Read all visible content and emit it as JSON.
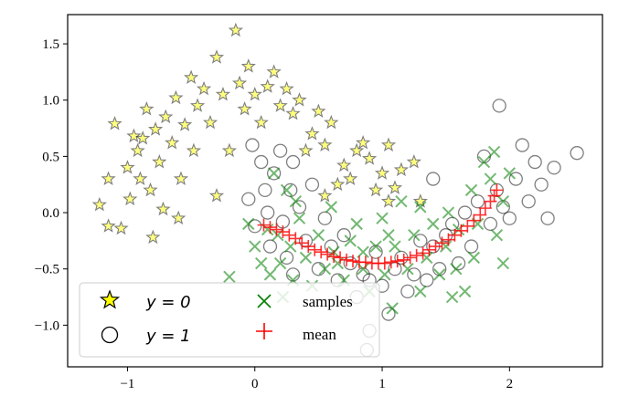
{
  "chart_data": {
    "type": "scatter",
    "title": "",
    "xlabel": "",
    "ylabel": "",
    "xlim": [
      -1.47,
      2.73
    ],
    "ylim": [
      -1.37,
      1.76
    ],
    "xticks": [
      -1,
      0,
      1,
      2
    ],
    "xtick_labels": [
      "−1",
      "0",
      "1",
      "2"
    ],
    "yticks": [
      1.5,
      1.0,
      0.5,
      0.0,
      -0.5,
      -1.0
    ],
    "ytick_labels": [
      "1.5",
      "1.0",
      "0.5",
      "0.0",
      "−0.5",
      "−1.0"
    ],
    "grid": false,
    "legend_position": "lower-left",
    "legend": [
      {
        "label": "y = 0",
        "marker": "star"
      },
      {
        "label": "y = 1",
        "marker": "circle"
      },
      {
        "label": "samples",
        "marker": "x"
      },
      {
        "label": "mean",
        "marker": "plus"
      }
    ],
    "colors": {
      "star_fill": "#ffff00",
      "points_edge": "#000000",
      "samples": "#008000",
      "mean": "#ff0000"
    },
    "series": [
      {
        "name": "y = 0",
        "points": [
          [
            -1.22,
            0.07
          ],
          [
            -1.15,
            -0.12
          ],
          [
            -1.1,
            0.79
          ],
          [
            -1.05,
            -0.14
          ],
          [
            -1.0,
            0.4
          ],
          [
            -0.98,
            0.12
          ],
          [
            -0.95,
            0.68
          ],
          [
            -0.92,
            0.55
          ],
          [
            -0.9,
            0.3
          ],
          [
            -0.88,
            0.66
          ],
          [
            -0.85,
            0.92
          ],
          [
            -0.82,
            0.2
          ],
          [
            -0.8,
            -0.22
          ],
          [
            -0.78,
            0.74
          ],
          [
            -0.75,
            0.45
          ],
          [
            -0.72,
            0.03
          ],
          [
            -0.7,
            0.85
          ],
          [
            -0.65,
            0.62
          ],
          [
            -0.62,
            1.02
          ],
          [
            -0.58,
            0.3
          ],
          [
            -0.55,
            0.78
          ],
          [
            -0.5,
            1.2
          ],
          [
            -0.48,
            0.55
          ],
          [
            -0.45,
            0.95
          ],
          [
            -0.4,
            1.1
          ],
          [
            -0.35,
            0.8
          ],
          [
            -0.3,
            1.38
          ],
          [
            -0.25,
            1.05
          ],
          [
            -0.2,
            0.55
          ],
          [
            -0.15,
            1.62
          ],
          [
            -0.12,
            1.15
          ],
          [
            -0.08,
            0.92
          ],
          [
            -0.05,
            1.3
          ],
          [
            0.0,
            1.05
          ],
          [
            0.05,
            0.8
          ],
          [
            0.1,
            1.12
          ],
          [
            0.15,
            1.25
          ],
          [
            0.2,
            0.95
          ],
          [
            0.25,
            1.1
          ],
          [
            0.3,
            0.88
          ],
          [
            0.35,
            1.0
          ],
          [
            0.4,
            0.55
          ],
          [
            0.45,
            0.7
          ],
          [
            0.5,
            0.9
          ],
          [
            0.55,
            0.6
          ],
          [
            0.6,
            0.8
          ],
          [
            0.65,
            0.25
          ],
          [
            0.7,
            0.42
          ],
          [
            0.75,
            0.3
          ],
          [
            0.8,
            0.55
          ],
          [
            0.85,
            0.62
          ],
          [
            0.9,
            0.48
          ],
          [
            0.95,
            0.2
          ],
          [
            1.0,
            0.35
          ],
          [
            1.05,
            0.6
          ],
          [
            1.1,
            0.22
          ],
          [
            1.15,
            0.38
          ],
          [
            1.25,
            0.45
          ],
          [
            1.3,
            0.1
          ],
          [
            -1.15,
            0.3
          ],
          [
            -0.6,
            -0.05
          ],
          [
            -0.3,
            0.15
          ],
          [
            0.55,
            0.15
          ],
          [
            1.05,
            0.1
          ]
        ]
      },
      {
        "name": "y = 1",
        "points": [
          [
            -0.05,
            0.12
          ],
          [
            0.0,
            -0.12
          ],
          [
            0.05,
            0.45
          ],
          [
            0.08,
            0.2
          ],
          [
            0.1,
            0.0
          ],
          [
            0.12,
            -0.3
          ],
          [
            0.15,
            0.35
          ],
          [
            0.2,
            0.55
          ],
          [
            0.22,
            -0.08
          ],
          [
            0.25,
            -0.4
          ],
          [
            0.28,
            0.2
          ],
          [
            0.3,
            0.45
          ],
          [
            0.35,
            0.05
          ],
          [
            0.4,
            -0.25
          ],
          [
            0.45,
            0.25
          ],
          [
            0.5,
            -0.5
          ],
          [
            0.55,
            -0.05
          ],
          [
            0.6,
            -0.3
          ],
          [
            0.65,
            -0.6
          ],
          [
            0.7,
            -0.2
          ],
          [
            0.75,
            -0.45
          ],
          [
            0.8,
            -0.75
          ],
          [
            0.85,
            -0.55
          ],
          [
            0.88,
            -1.22
          ],
          [
            0.9,
            -1.05
          ],
          [
            0.95,
            -0.35
          ],
          [
            1.0,
            -0.65
          ],
          [
            1.05,
            -0.9
          ],
          [
            1.1,
            -0.5
          ],
          [
            1.15,
            -0.4
          ],
          [
            1.2,
            -0.7
          ],
          [
            1.25,
            -0.55
          ],
          [
            1.3,
            -0.25
          ],
          [
            1.35,
            -0.6
          ],
          [
            1.4,
            -0.3
          ],
          [
            1.45,
            -0.5
          ],
          [
            1.5,
            -0.2
          ],
          [
            1.55,
            -0.1
          ],
          [
            1.6,
            -0.45
          ],
          [
            1.65,
            0.0
          ],
          [
            1.7,
            -0.3
          ],
          [
            1.75,
            0.1
          ],
          [
            1.8,
            0.5
          ],
          [
            1.85,
            -0.1
          ],
          [
            1.9,
            0.2
          ],
          [
            1.92,
            0.95
          ],
          [
            1.95,
            0.05
          ],
          [
            2.0,
            -0.05
          ],
          [
            2.05,
            0.3
          ],
          [
            2.1,
            0.6
          ],
          [
            2.15,
            0.1
          ],
          [
            2.2,
            0.45
          ],
          [
            2.25,
            0.25
          ],
          [
            2.3,
            -0.05
          ],
          [
            2.35,
            0.4
          ],
          [
            2.53,
            0.53
          ],
          [
            1.4,
            0.3
          ],
          [
            0.9,
            -0.6
          ],
          [
            -0.02,
            0.6
          ],
          [
            0.3,
            -0.55
          ]
        ]
      },
      {
        "name": "samples",
        "points": [
          [
            -0.2,
            -0.57
          ],
          [
            -0.05,
            -0.1
          ],
          [
            0.0,
            -0.3
          ],
          [
            0.05,
            -0.45
          ],
          [
            0.1,
            -0.15
          ],
          [
            0.12,
            -0.55
          ],
          [
            0.15,
            0.35
          ],
          [
            0.18,
            -0.2
          ],
          [
            0.2,
            -0.45
          ],
          [
            0.25,
            0.2
          ],
          [
            0.28,
            -0.3
          ],
          [
            0.3,
            -0.6
          ],
          [
            0.35,
            -0.05
          ],
          [
            0.4,
            -0.4
          ],
          [
            0.45,
            -0.65
          ],
          [
            0.5,
            -0.2
          ],
          [
            0.55,
            -0.5
          ],
          [
            0.6,
            0.05
          ],
          [
            0.62,
            -0.35
          ],
          [
            0.7,
            -0.6
          ],
          [
            0.75,
            -0.25
          ],
          [
            0.8,
            -0.1
          ],
          [
            0.85,
            -0.5
          ],
          [
            0.9,
            -0.7
          ],
          [
            0.95,
            -0.3
          ],
          [
            1.0,
            -0.05
          ],
          [
            1.02,
            -0.55
          ],
          [
            1.08,
            -0.85
          ],
          [
            1.1,
            -0.3
          ],
          [
            1.15,
            0.1
          ],
          [
            1.2,
            -0.5
          ],
          [
            1.25,
            -0.2
          ],
          [
            1.3,
            -0.7
          ],
          [
            1.35,
            -0.4
          ],
          [
            1.4,
            -0.1
          ],
          [
            1.45,
            -0.55
          ],
          [
            1.5,
            -0.3
          ],
          [
            1.52,
            0.0
          ],
          [
            1.58,
            -0.5
          ],
          [
            1.6,
            -0.15
          ],
          [
            1.65,
            -0.7
          ],
          [
            1.7,
            0.2
          ],
          [
            1.72,
            -0.4
          ],
          [
            1.75,
            -0.1
          ],
          [
            1.8,
            0.45
          ],
          [
            1.85,
            0.3
          ],
          [
            1.88,
            0.54
          ],
          [
            1.9,
            -0.2
          ],
          [
            1.95,
            0.1
          ],
          [
            2.0,
            0.35
          ],
          [
            1.55,
            -0.75
          ],
          [
            1.05,
            -0.2
          ],
          [
            0.65,
            -0.45
          ],
          [
            0.32,
            0.1
          ],
          [
            0.22,
            -0.75
          ],
          [
            1.95,
            -0.45
          ],
          [
            1.3,
            0.05
          ],
          [
            0.85,
            -0.35
          ]
        ]
      },
      {
        "name": "mean",
        "points": [
          [
            0.07,
            -0.11
          ],
          [
            0.12,
            -0.13
          ],
          [
            0.17,
            -0.15
          ],
          [
            0.22,
            -0.17
          ],
          [
            0.27,
            -0.2
          ],
          [
            0.32,
            -0.23
          ],
          [
            0.37,
            -0.27
          ],
          [
            0.42,
            -0.3
          ],
          [
            0.47,
            -0.33
          ],
          [
            0.52,
            -0.35
          ],
          [
            0.57,
            -0.37
          ],
          [
            0.62,
            -0.39
          ],
          [
            0.67,
            -0.4
          ],
          [
            0.72,
            -0.42
          ],
          [
            0.77,
            -0.43
          ],
          [
            0.82,
            -0.44
          ],
          [
            0.87,
            -0.44
          ],
          [
            0.92,
            -0.45
          ],
          [
            0.97,
            -0.45
          ],
          [
            1.02,
            -0.45
          ],
          [
            1.07,
            -0.44
          ],
          [
            1.12,
            -0.43
          ],
          [
            1.17,
            -0.42
          ],
          [
            1.22,
            -0.4
          ],
          [
            1.27,
            -0.38
          ],
          [
            1.32,
            -0.36
          ],
          [
            1.37,
            -0.33
          ],
          [
            1.42,
            -0.3
          ],
          [
            1.47,
            -0.27
          ],
          [
            1.52,
            -0.24
          ],
          [
            1.57,
            -0.2
          ],
          [
            1.62,
            -0.16
          ],
          [
            1.67,
            -0.12
          ],
          [
            1.72,
            -0.07
          ],
          [
            1.77,
            -0.02
          ],
          [
            1.81,
            0.04
          ],
          [
            1.85,
            0.1
          ],
          [
            1.88,
            0.15
          ],
          [
            1.9,
            0.2
          ]
        ]
      }
    ]
  }
}
